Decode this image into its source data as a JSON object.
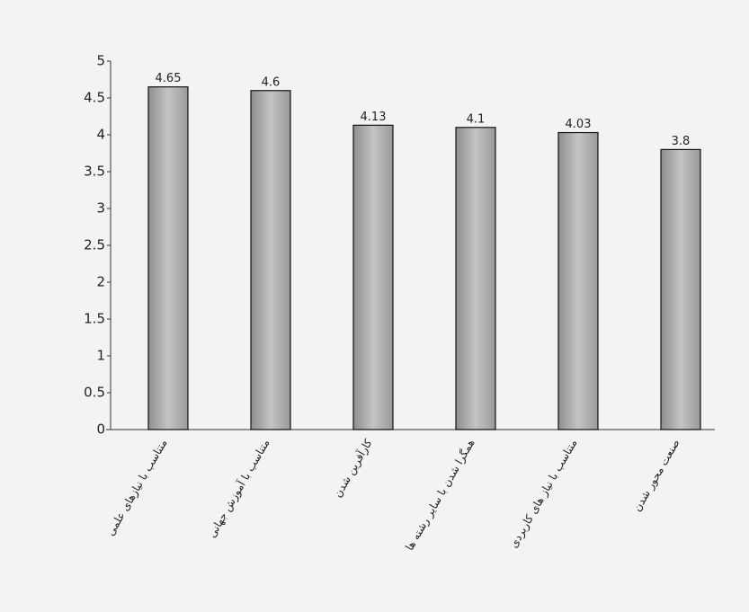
{
  "chart_data": {
    "type": "bar",
    "categories": [
      "متناسب با نیازهای علمی",
      "متناسب با آموزش جهانی",
      "کارآفرین شدن",
      "همگرا شدن با سایر رشته ها",
      "متناسب با نیاز های کاربردی",
      "صنعت محور شدن"
    ],
    "values": [
      4.65,
      4.6,
      4.13,
      4.1,
      4.03,
      3.8
    ],
    "color": "#a8a8a8",
    "ylim": [
      0,
      5
    ],
    "yticks": [
      0,
      0.5,
      1,
      1.5,
      2,
      2.5,
      3,
      3.5,
      4,
      4.5,
      5
    ],
    "grid": false
  }
}
